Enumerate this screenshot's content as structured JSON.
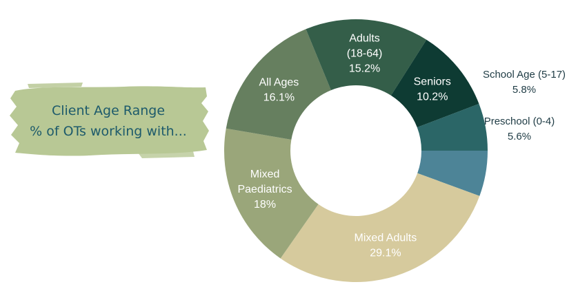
{
  "title": {
    "line1": "Client Age Range",
    "line2": "% of OTs working with..."
  },
  "colors": {
    "brush": "#b8c895",
    "title_text": "#1d5a6b"
  },
  "chart_data": {
    "type": "pie",
    "donut": true,
    "slices": [
      {
        "label_lines": [
          "Preschool (0-4)"
        ],
        "value_text": "5.6%",
        "value": 5.6,
        "color": "#4d8497",
        "label_color": "#1e3b44",
        "label_outside": true
      },
      {
        "label_lines": [
          "Mixed Adults"
        ],
        "value_text": "29.1%",
        "value": 29.1,
        "color": "#d6ca9d",
        "label_color": "#ffffff",
        "label_outside": false
      },
      {
        "label_lines": [
          "Mixed",
          "Paediatrics"
        ],
        "value_text": "18%",
        "value": 18.0,
        "color": "#9aa67a",
        "label_color": "#ffffff",
        "label_outside": false
      },
      {
        "label_lines": [
          "All Ages"
        ],
        "value_text": "16.1%",
        "value": 16.1,
        "color": "#667f5f",
        "label_color": "#ffffff",
        "label_outside": false
      },
      {
        "label_lines": [
          "Adults",
          "(18-64)"
        ],
        "value_text": "15.2%",
        "value": 15.2,
        "color": "#345e49",
        "label_color": "#ffffff",
        "label_outside": false
      },
      {
        "label_lines": [
          "Seniors"
        ],
        "value_text": "10.2%",
        "value": 10.2,
        "color": "#0e3b33",
        "label_color": "#ffffff",
        "label_outside": false
      },
      {
        "label_lines": [
          "School Age (5-17)"
        ],
        "value_text": "5.8%",
        "value": 5.8,
        "color": "#2b6667",
        "label_color": "#1e3b44",
        "label_outside": true
      }
    ]
  }
}
